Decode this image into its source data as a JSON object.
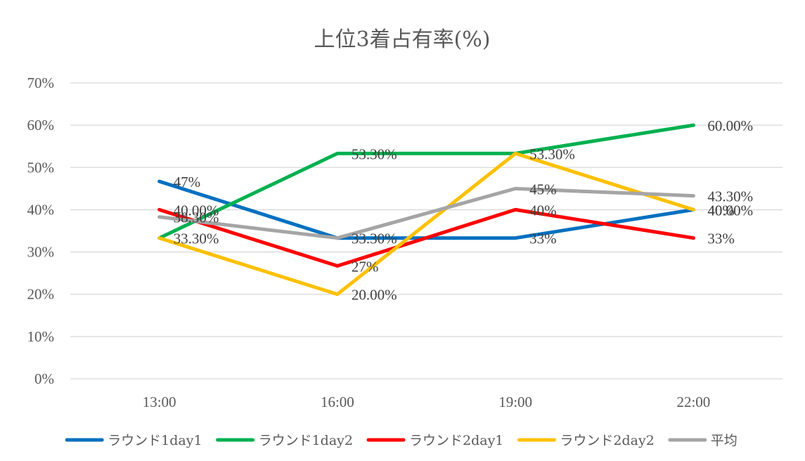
{
  "chart_data": {
    "type": "line",
    "title": "上位3着占有率(%)",
    "categories": [
      "13:00",
      "16:00",
      "19:00",
      "22:00"
    ],
    "y_ticks": [
      "0%",
      "10%",
      "20%",
      "30%",
      "40%",
      "50%",
      "60%",
      "70%"
    ],
    "ylim": [
      0,
      70
    ],
    "grid": true,
    "legend_position": "bottom",
    "series": [
      {
        "name": "ラウンド1day1",
        "color": "#0070c0",
        "values": [
          46.7,
          33.3,
          33.3,
          40.0
        ],
        "labels": [
          "47%",
          "",
          "33%",
          "40%"
        ]
      },
      {
        "name": "ラウンド1day2",
        "color": "#00b050",
        "values": [
          33.3,
          53.3,
          53.3,
          60.0
        ],
        "labels": [
          "",
          "53.30%",
          "",
          "60.00%"
        ]
      },
      {
        "name": "ラウンド2day1",
        "color": "#ff0000",
        "values": [
          40.0,
          26.7,
          40.0,
          33.3
        ],
        "labels": [
          "40.00%",
          "27%",
          "40%",
          "33%"
        ]
      },
      {
        "name": "ラウンド2day2",
        "color": "#ffc000",
        "values": [
          33.3,
          20.0,
          53.3,
          40.0
        ],
        "labels": [
          "33.30%",
          "20.00%",
          "53.30%",
          "40.00%"
        ]
      },
      {
        "name": "平均",
        "color": "#a5a5a5",
        "values": [
          38.3,
          33.3,
          45.0,
          43.3
        ],
        "labels": [
          "38.30%",
          "33.30%",
          "45%",
          "43.30%"
        ]
      }
    ]
  }
}
